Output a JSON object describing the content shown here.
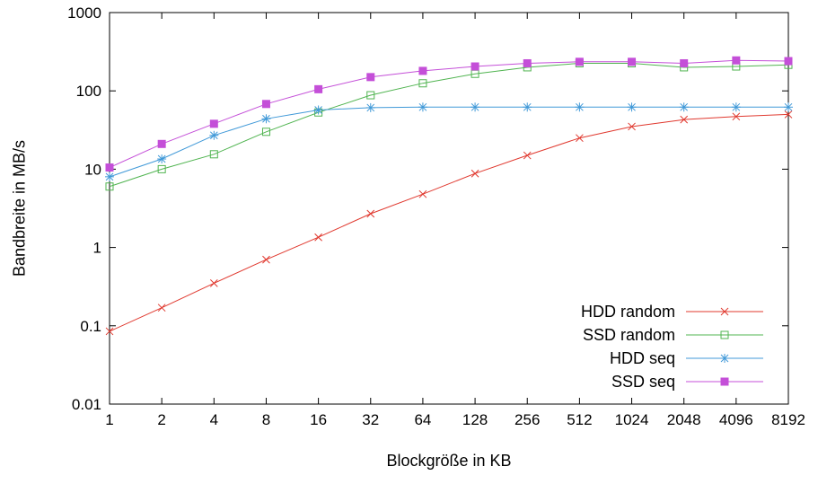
{
  "chart_data": {
    "type": "line",
    "title": "",
    "xlabel": "Blockgröße in KB",
    "ylabel": "Bandbreite in MB/s",
    "xscale": "log2",
    "yscale": "log10",
    "xlim": [
      1,
      8192
    ],
    "ylim": [
      0.01,
      1000
    ],
    "x": [
      1,
      2,
      4,
      8,
      16,
      32,
      64,
      128,
      256,
      512,
      1024,
      2048,
      4096,
      8192
    ],
    "xtick_labels": [
      "1",
      "2",
      "4",
      "8",
      "16",
      "32",
      "64",
      "128",
      "256",
      "512",
      "1024",
      "2048",
      "4096",
      "8192"
    ],
    "yticks": [
      0.01,
      0.1,
      1,
      10,
      100,
      1000
    ],
    "ytick_labels": [
      "0.01",
      "0.1",
      "1",
      "10",
      "100",
      "1000"
    ],
    "grid": false,
    "legend_position": "bottom-right",
    "series": [
      {
        "name": "HDD random",
        "color": "#e0382e",
        "marker": "x",
        "values": [
          0.085,
          0.17,
          0.35,
          0.7,
          1.35,
          2.7,
          4.8,
          8.8,
          15,
          25,
          35,
          43,
          47,
          50
        ]
      },
      {
        "name": "SSD random",
        "color": "#50b450",
        "marker": "square-open",
        "values": [
          6,
          10,
          15.5,
          30,
          53,
          88,
          125,
          165,
          200,
          225,
          225,
          200,
          205,
          215
        ]
      },
      {
        "name": "HDD seq",
        "color": "#4099d8",
        "marker": "asterisk",
        "values": [
          8,
          13.5,
          27,
          44,
          57,
          61,
          62,
          62,
          62,
          62,
          62,
          62,
          62,
          62
        ]
      },
      {
        "name": "SSD seq",
        "color": "#c44fd8",
        "marker": "square-filled",
        "values": [
          10.5,
          21,
          38,
          68,
          105,
          150,
          180,
          205,
          225,
          235,
          235,
          225,
          245,
          240
        ]
      }
    ],
    "colors": {
      "axis": "#000000",
      "text": "#000000",
      "background": "#ffffff"
    }
  }
}
